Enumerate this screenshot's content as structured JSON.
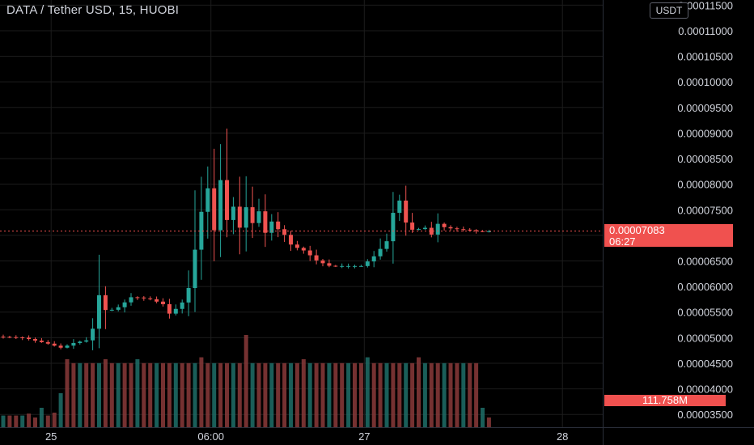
{
  "header": {
    "title": "DATA / Tether USD, 15, HUOBI",
    "currency": "USDT"
  },
  "price_tag": {
    "price": "0.00007083",
    "countdown": "06:27"
  },
  "volume_tag": "111.758M",
  "colors": {
    "up": "#26a69a",
    "down": "#ef5350",
    "background": "#000000",
    "grid": "#1c1c1c",
    "text": "#d1d4dc",
    "tag": "#f0514f"
  },
  "chart_data": {
    "type": "candlestick",
    "title": "DATA / Tether USD, 15, HUOBI",
    "y_ticks": [
      "0.00011500",
      "0.00011000",
      "0.00010500",
      "0.00010000",
      "0.00009500",
      "0.00009000",
      "0.00008500",
      "0.00008000",
      "0.00007500",
      "0.00007000",
      "0.00006500",
      "0.00006000",
      "0.00005500",
      "0.00005000",
      "0.00004500",
      "0.00004000",
      "0.00003500"
    ],
    "y_tick_values": [
      0.000115,
      0.00011,
      0.000105,
      0.0001,
      9.5e-05,
      9e-05,
      8.5e-05,
      8e-05,
      7.5e-05,
      7e-05,
      6.5e-05,
      6e-05,
      5.5e-05,
      5e-05,
      4.5e-05,
      4e-05,
      3.5e-05
    ],
    "ylim": [
      3.25e-05,
      0.000116
    ],
    "x_ticks": [
      "25",
      "06:00",
      "27",
      "28"
    ],
    "x_tick_index": [
      8,
      33,
      57,
      88
    ],
    "last_price": 7.083e-05,
    "grid": true,
    "price_path": [
      [
        0,
        5.02e-05
      ],
      [
        4,
        5e-05
      ],
      [
        8,
        4.88e-05
      ],
      [
        10,
        4.8e-05
      ],
      [
        12,
        4.9e-05
      ],
      [
        14,
        4.95e-05
      ],
      [
        15,
        5.2e-05
      ],
      [
        16,
        5.9e-05
      ],
      [
        17,
        5.5e-05
      ],
      [
        19,
        5.6e-05
      ],
      [
        21,
        5.8e-05
      ],
      [
        24,
        5.75e-05
      ],
      [
        26,
        5.65e-05
      ],
      [
        27,
        5.45e-05
      ],
      [
        29,
        5.7e-05
      ],
      [
        30,
        6e-05
      ],
      [
        31,
        6.8e-05
      ],
      [
        31.5,
        8.5e-05
      ],
      [
        32,
        7.2e-05
      ],
      [
        33,
        8e-05
      ],
      [
        34,
        7e-05
      ],
      [
        35,
        8.2e-05
      ],
      [
        36,
        7.2e-05
      ],
      [
        37,
        7.6e-05
      ],
      [
        38,
        7.1e-05
      ],
      [
        39,
        7.6e-05
      ],
      [
        40,
        7.2e-05
      ],
      [
        41,
        7.5e-05
      ],
      [
        42,
        7e-05
      ],
      [
        43,
        7.3e-05
      ],
      [
        44,
        7.1e-05
      ],
      [
        45,
        7e-05
      ],
      [
        46,
        6.8e-05
      ],
      [
        48,
        6.7e-05
      ],
      [
        50,
        6.5e-05
      ],
      [
        52,
        6.4e-05
      ],
      [
        54,
        6.4e-05
      ],
      [
        57,
        6.4e-05
      ],
      [
        59,
        6.6e-05
      ],
      [
        61,
        6.9e-05
      ],
      [
        62,
        7.5e-05
      ],
      [
        63,
        7.7e-05
      ],
      [
        64,
        7.2e-05
      ],
      [
        65,
        7.1e-05
      ],
      [
        67,
        7.15e-05
      ],
      [
        68,
        7e-05
      ],
      [
        69,
        7.25e-05
      ],
      [
        70,
        7.15e-05
      ],
      [
        72,
        7.12e-05
      ],
      [
        74,
        7.1e-05
      ],
      [
        75,
        7.08e-05
      ],
      [
        76,
        7.08e-05
      ]
    ],
    "volume_ratio": [
      0.12,
      0.12,
      0.12,
      0.12,
      0.14,
      0.1,
      0.2,
      0.12,
      0.15,
      0.35,
      0.7,
      0.66,
      0.66,
      0.66,
      0.66,
      0.66,
      0.7,
      0.66,
      0.66,
      0.66,
      0.66,
      0.7,
      0.66,
      0.66,
      0.66,
      0.66,
      0.66,
      0.66,
      0.66,
      0.66,
      0.66,
      0.72,
      0.66,
      0.66,
      0.66,
      0.66,
      0.66,
      0.66,
      0.95,
      0.66,
      0.66,
      0.66,
      0.66,
      0.66,
      0.66,
      0.66,
      0.66,
      0.7,
      0.66,
      0.66,
      0.66,
      0.66,
      0.66,
      0.66,
      0.66,
      0.66,
      0.66,
      0.72,
      0.66,
      0.66,
      0.66,
      0.66,
      0.66,
      0.66,
      0.66,
      0.72,
      0.66,
      0.66,
      0.66,
      0.66,
      0.66,
      0.66,
      0.66,
      0.66,
      0.66,
      0.2,
      0.1
    ]
  }
}
